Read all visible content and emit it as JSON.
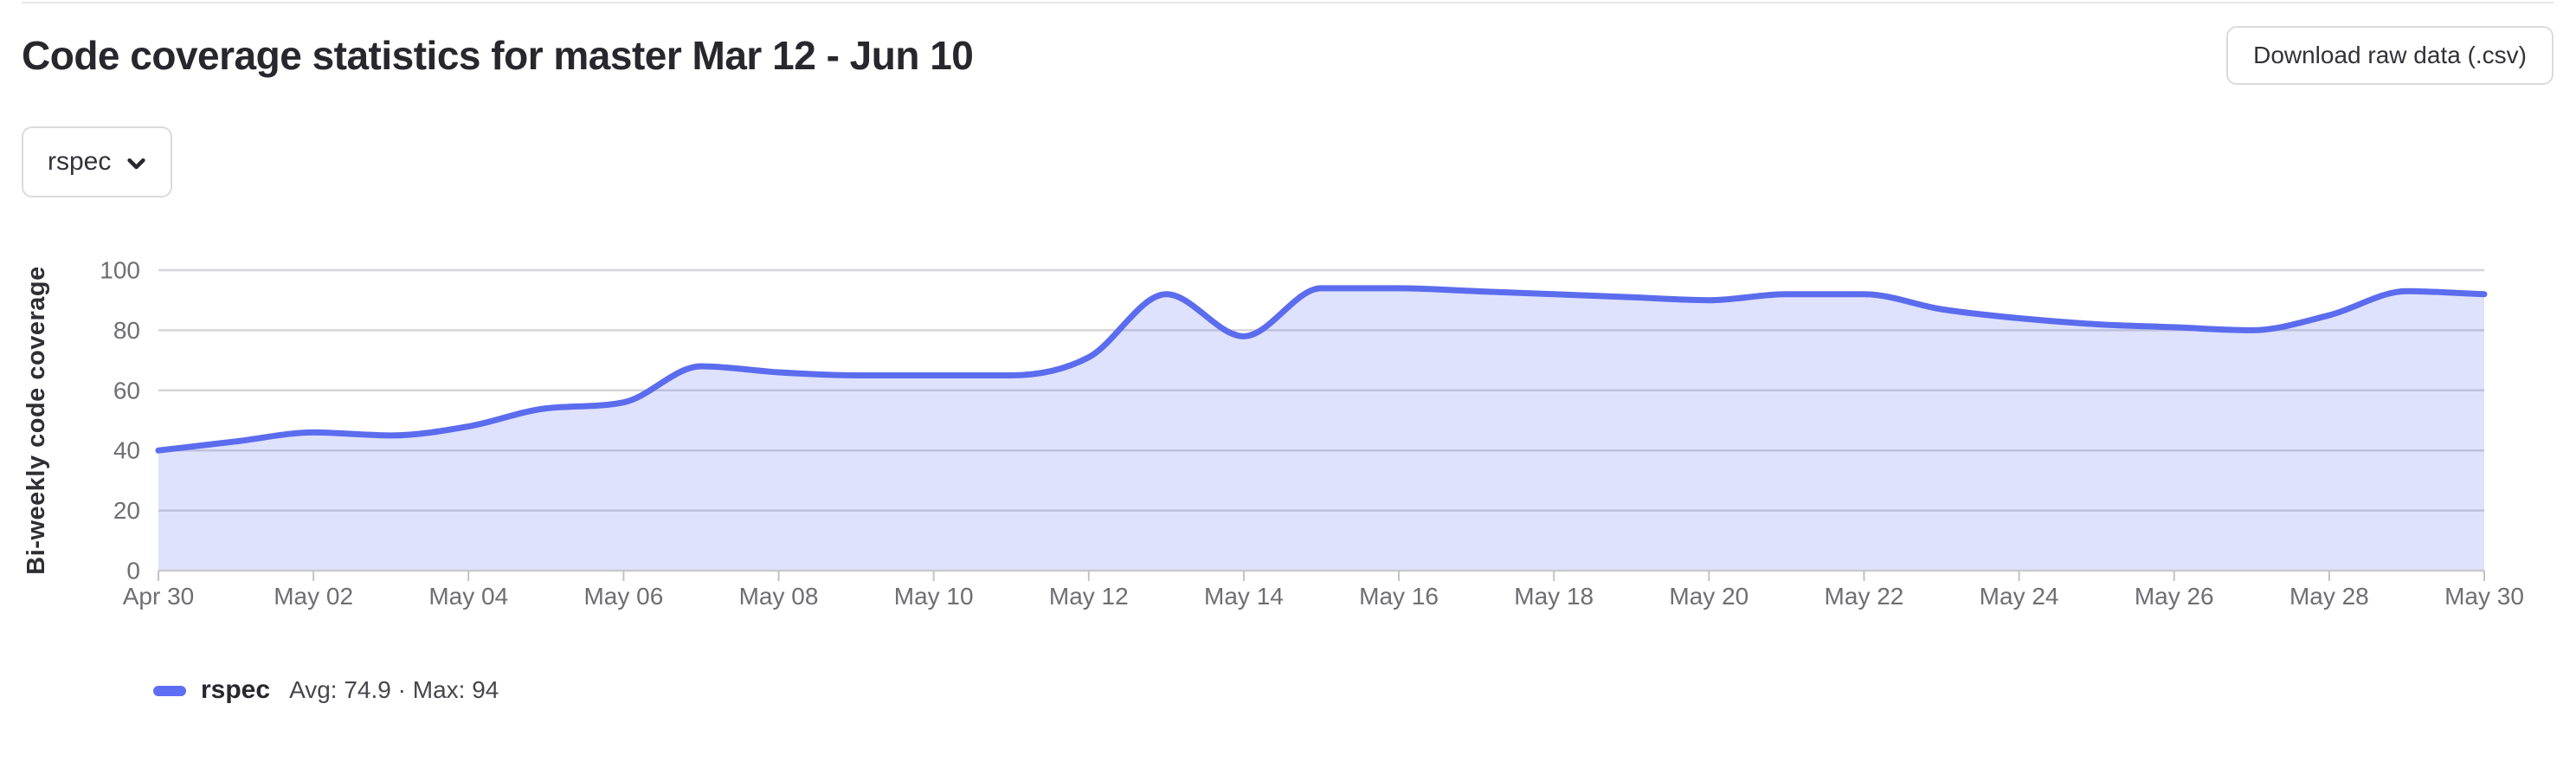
{
  "header": {
    "title": "Code coverage statistics for master Mar 12 - Jun 10",
    "download_button_label": "Download raw data (.csv)"
  },
  "filters": {
    "selected_job": "rspec"
  },
  "legend": {
    "name": "rspec",
    "stats": "Avg: 74.9 · Max: 94",
    "swatch_color": "#5d6ef2"
  },
  "chart_data": {
    "type": "area",
    "title": "",
    "xlabel": "",
    "ylabel": "Bi-weekly code coverage",
    "x_start": "Apr 30",
    "x_end": "May 30",
    "x_step_days": 1,
    "x_tick_labels": [
      "Apr 30",
      "May 02",
      "May 04",
      "May 06",
      "May 08",
      "May 10",
      "May 12",
      "May 14",
      "May 16",
      "May 18",
      "May 20",
      "May 22",
      "May 24",
      "May 26",
      "May 28",
      "May 30"
    ],
    "points_per_tick": 2,
    "ylim": [
      0,
      100
    ],
    "y_ticks": [
      0,
      20,
      40,
      60,
      80,
      100
    ],
    "grid": true,
    "smooth": true,
    "legend_position": "bottom-left",
    "series": [
      {
        "name": "rspec",
        "color": "#5c6cee",
        "fill_opacity": 0.2,
        "avg": 74.9,
        "max": 94,
        "values": [
          40,
          43,
          46,
          45,
          48,
          54,
          56,
          68,
          66,
          65,
          65,
          65,
          71,
          92,
          78,
          94,
          94,
          93,
          92,
          91,
          90,
          92,
          92,
          87,
          84,
          82,
          81,
          80,
          85,
          93,
          92
        ]
      }
    ],
    "colors": {
      "grid_line": "#d6d6d9",
      "axis_line": "#c9c9ce",
      "tick_mark": "#c2c2c6",
      "axis_text": "#6e6e73",
      "axis_title": "#2f2e33"
    }
  }
}
